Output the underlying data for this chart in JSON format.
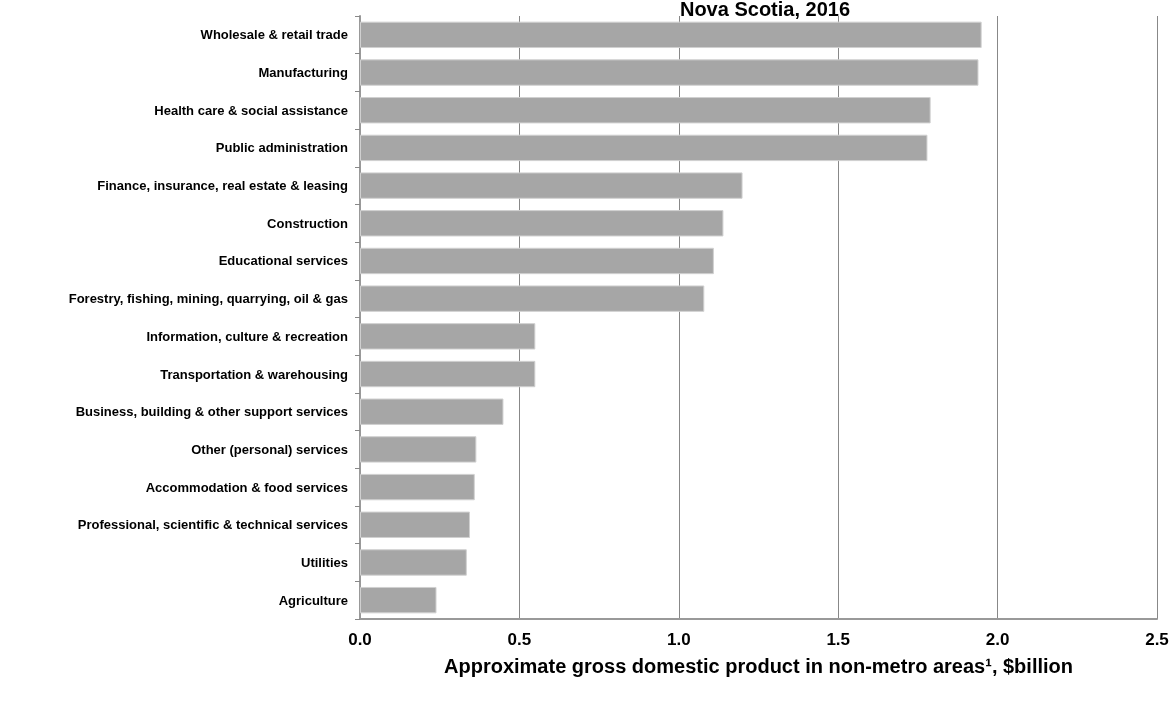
{
  "chart_data": {
    "type": "bar",
    "orientation": "horizontal",
    "title": "Nova Scotia, 2016",
    "xlabel": "Approximate gross domestic product in non-metro areas¹, $billion",
    "categories": [
      "Wholesale & retail trade",
      "Manufacturing",
      "Health care & social assistance",
      "Public administration",
      "Finance, insurance, real estate & leasing",
      "Construction",
      "Educational services",
      "Forestry, fishing, mining, quarrying, oil & gas",
      "Information, culture & recreation",
      "Transportation & warehousing",
      "Business, building & other support services",
      "Other (personal) services",
      "Accommodation & food services",
      "Professional, scientific & technical services",
      "Utilities",
      "Agriculture"
    ],
    "values": [
      1.95,
      1.94,
      1.79,
      1.78,
      1.2,
      1.14,
      1.11,
      1.08,
      0.55,
      0.55,
      0.45,
      0.365,
      0.36,
      0.345,
      0.335,
      0.24
    ],
    "color": "#a6a6a6",
    "xlim": [
      0,
      2.5
    ],
    "xticks": [
      {
        "value": 0,
        "label": "0.0"
      },
      {
        "value": 0.5,
        "label": "0.5"
      },
      {
        "value": 1,
        "label": "1.0"
      },
      {
        "value": 1.5,
        "label": "1.5"
      },
      {
        "value": 2,
        "label": "2.0"
      },
      {
        "value": 2.5,
        "label": "2.5"
      }
    ],
    "grid": "x"
  }
}
